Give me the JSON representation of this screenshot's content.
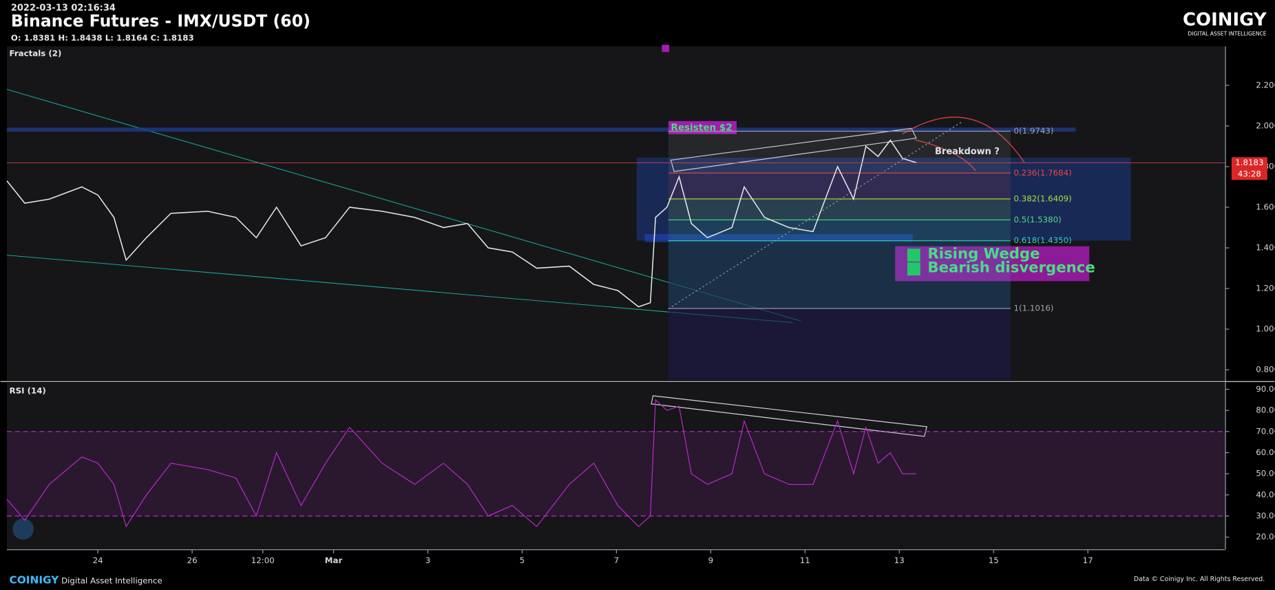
{
  "header": {
    "timestamp": "2022-03-13 02:16:34",
    "title": "Binance Futures - IMX/USDT (60)",
    "ohlc": "O: 1.8381 H: 1.8438 L: 1.8164 C: 1.8183",
    "brand": "COINIGY",
    "brand_tagline": "DIGITAL ASSET INTELLIGENCE"
  },
  "footer": {
    "brand": "COINIGY",
    "tagline": "Digital Asset Intelligence",
    "copyright": "Data © Coinigy Inc.  All Rights Reserved."
  },
  "chart_data": [
    {
      "type": "line",
      "title": "Fractals (2)",
      "color": "#e5e7eb",
      "x": [
        22.07,
        22.45,
        22.97,
        23.66,
        24,
        24.34,
        24.6,
        25.03,
        25.55,
        26.33,
        26.93,
        27.36,
        27.79,
        28.31,
        28.83,
        29.34,
        30.03,
        30.72,
        31.33,
        31.84,
        32.28,
        32.79,
        33.31,
        34.0,
        34.52,
        35.03,
        35.47,
        35.72,
        35.83,
        36.07,
        36.33,
        36.59,
        36.93,
        37.45,
        37.71,
        38.14,
        38.66,
        39.17,
        39.69,
        40.03,
        40.29,
        40.55,
        40.81,
        41.07,
        41.36
      ],
      "values": [
        1.73,
        1.62,
        1.64,
        1.7,
        1.66,
        1.55,
        1.34,
        1.45,
        1.57,
        1.58,
        1.55,
        1.45,
        1.6,
        1.41,
        1.45,
        1.6,
        1.58,
        1.55,
        1.5,
        1.52,
        1.4,
        1.38,
        1.3,
        1.31,
        1.22,
        1.19,
        1.11,
        1.13,
        1.55,
        1.6,
        1.75,
        1.52,
        1.45,
        1.5,
        1.7,
        1.55,
        1.5,
        1.48,
        1.8,
        1.64,
        1.9,
        1.85,
        1.93,
        1.84,
        1.82
      ],
      "xlim": [
        22.07,
        47.91
      ],
      "ylim": [
        0.748,
        2.392
      ],
      "yticks": [
        {
          "value": 2.2,
          "label": "2.2000"
        },
        {
          "value": 2.0,
          "label": "2.0000"
        },
        {
          "value": 1.8,
          "label": "1.8000"
        },
        {
          "value": 1.6,
          "label": "1.6000"
        },
        {
          "value": 1.4,
          "label": "1.4000"
        },
        {
          "value": 1.2,
          "label": "1.2000"
        },
        {
          "value": 1.0,
          "label": "1.0000"
        },
        {
          "value": 0.8,
          "label": "0.8000"
        }
      ],
      "fib_levels": [
        {
          "value": 1.9743,
          "label": "0(1.9743)",
          "color": "#9ca3af"
        },
        {
          "value": 1.7684,
          "label": "0.236(1.7684)",
          "color": "#ef4444"
        },
        {
          "value": 1.6409,
          "label": "0.382(1.6409)",
          "color": "#a3e635"
        },
        {
          "value": 1.538,
          "label": "0.5(1.5380)",
          "color": "#4ade80"
        },
        {
          "value": 1.435,
          "label": "0.618(1.4350)",
          "color": "#2dd4bf"
        },
        {
          "value": 1.1016,
          "label": "1(1.1016)",
          "color": "#9ca3af"
        }
      ],
      "last_price": 1.8183,
      "countdown": "43:28",
      "annotations": {
        "resistance": "Resisten $2",
        "breakdown": "Breakdown ?",
        "pattern_1": "Rising Wedge",
        "pattern_2": "Bearish disvergence"
      }
    },
    {
      "type": "line",
      "title": "RSI (14)",
      "color": "#c026d3",
      "x": [
        22.07,
        22.45,
        22.97,
        23.66,
        24,
        24.34,
        24.6,
        25.03,
        25.55,
        26.33,
        26.93,
        27.36,
        27.79,
        28.31,
        28.83,
        29.34,
        30.03,
        30.72,
        31.33,
        31.84,
        32.28,
        32.79,
        33.31,
        34.0,
        34.52,
        35.03,
        35.47,
        35.72,
        35.83,
        36.07,
        36.33,
        36.59,
        36.93,
        37.45,
        37.71,
        38.14,
        38.66,
        39.17,
        39.69,
        40.03,
        40.29,
        40.55,
        40.81,
        41.07,
        41.36
      ],
      "values": [
        38,
        28,
        45,
        58,
        55,
        45,
        25,
        40,
        55,
        52,
        48,
        30,
        60,
        35,
        55,
        72,
        55,
        45,
        55,
        45,
        30,
        35,
        25,
        45,
        55,
        35,
        25,
        30,
        85,
        80,
        82,
        50,
        45,
        50,
        75,
        50,
        45,
        45,
        75,
        50,
        72,
        55,
        60,
        50,
        50
      ],
      "xlim": [
        22.07,
        47.91
      ],
      "ylim": [
        14.2,
        93.1
      ],
      "xticks": [
        24,
        26,
        {
          "value": 27.5,
          "label": "12:00"
        },
        {
          "value": 29,
          "label": "Mar"
        },
        {
          "value": 31,
          "label": "3"
        },
        {
          "value": 33,
          "label": "5"
        },
        {
          "value": 35,
          "label": "7"
        },
        {
          "value": 37,
          "label": "9"
        },
        {
          "value": 39,
          "label": "11"
        },
        {
          "value": 41,
          "label": "13"
        },
        {
          "value": 43,
          "label": "15"
        },
        {
          "value": 45,
          "label": "17"
        }
      ],
      "yticks": [
        {
          "value": 90,
          "label": "90.0000"
        },
        {
          "value": 80,
          "label": "80.0000"
        },
        {
          "value": 70,
          "label": "70.0000"
        },
        {
          "value": 60,
          "label": "60.0000"
        },
        {
          "value": 50,
          "label": "50.0000"
        },
        {
          "value": 40,
          "label": "40.0000"
        },
        {
          "value": 30,
          "label": "30.0000"
        },
        {
          "value": 20,
          "label": "20.0000"
        }
      ],
      "bands": [
        70,
        30
      ]
    }
  ]
}
